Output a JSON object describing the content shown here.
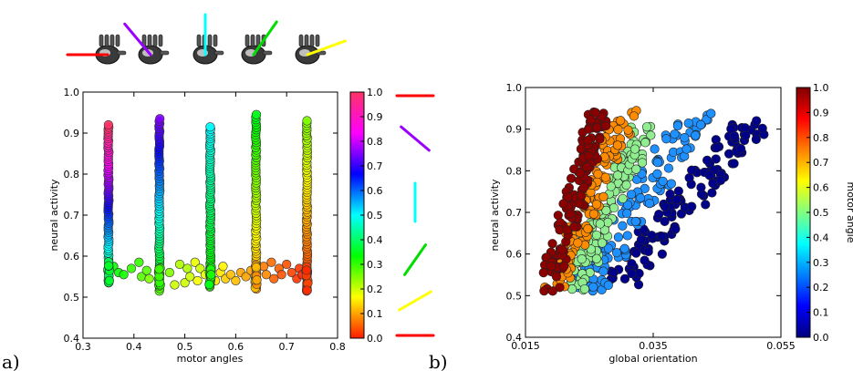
{
  "panels": {
    "a": "a)",
    "b": "b)"
  },
  "chart_data": [
    {
      "type": "scatter",
      "panel": "a)",
      "xlabel": "motor angles",
      "ylabel": "neural activity",
      "xlim": [
        0.3,
        0.8
      ],
      "ylim": [
        0.4,
        1.0
      ],
      "xticks": [
        "0.3",
        "0.4",
        "0.5",
        "0.6",
        "0.7",
        "0.8"
      ],
      "yticks": [
        "0.4",
        "0.5",
        "0.6",
        "0.7",
        "0.8",
        "0.9",
        "1.0"
      ],
      "colorbar": {
        "range": [
          0.0,
          1.0
        ],
        "ticks": [
          "0.0",
          "0.1",
          "0.2",
          "0.3",
          "0.4",
          "0.5",
          "0.6",
          "0.7",
          "0.8",
          "0.9",
          "1.0"
        ],
        "colors": [
          "#ff1a00",
          "#ffff00",
          "#00ff00",
          "#00ffff",
          "#0000ff",
          "#ff00ff",
          "#ff3366"
        ]
      },
      "columns": [
        {
          "x": 0.35,
          "ymin": 0.535,
          "ymax": 0.92,
          "color_min": 0.35,
          "color_max": 1.0
        },
        {
          "x": 0.45,
          "ymin": 0.515,
          "ymax": 0.935,
          "color_min": 0.28,
          "color_max": 0.75
        },
        {
          "x": 0.55,
          "ymin": 0.525,
          "ymax": 0.915,
          "color_min": 0.3,
          "color_max": 0.5
        },
        {
          "x": 0.64,
          "ymin": 0.52,
          "ymax": 0.945,
          "color_min": 0.08,
          "color_max": 0.35
        },
        {
          "x": 0.74,
          "ymin": 0.515,
          "ymax": 0.93,
          "color_min": 0.0,
          "color_max": 0.25
        }
      ],
      "baseline_points": [
        {
          "x": 0.36,
          "y": 0.575,
          "c": 0.33
        },
        {
          "x": 0.37,
          "y": 0.56,
          "c": 0.33
        },
        {
          "x": 0.38,
          "y": 0.555,
          "c": 0.32
        },
        {
          "x": 0.395,
          "y": 0.57,
          "c": 0.3
        },
        {
          "x": 0.41,
          "y": 0.585,
          "c": 0.3
        },
        {
          "x": 0.415,
          "y": 0.55,
          "c": 0.28
        },
        {
          "x": 0.425,
          "y": 0.565,
          "c": 0.28
        },
        {
          "x": 0.43,
          "y": 0.545,
          "c": 0.25
        },
        {
          "x": 0.47,
          "y": 0.56,
          "c": 0.25
        },
        {
          "x": 0.48,
          "y": 0.53,
          "c": 0.2
        },
        {
          "x": 0.49,
          "y": 0.58,
          "c": 0.22
        },
        {
          "x": 0.5,
          "y": 0.535,
          "c": 0.2
        },
        {
          "x": 0.505,
          "y": 0.57,
          "c": 0.22
        },
        {
          "x": 0.51,
          "y": 0.55,
          "c": 0.2
        },
        {
          "x": 0.52,
          "y": 0.585,
          "c": 0.18
        },
        {
          "x": 0.525,
          "y": 0.54,
          "c": 0.17
        },
        {
          "x": 0.53,
          "y": 0.57,
          "c": 0.2
        },
        {
          "x": 0.54,
          "y": 0.555,
          "c": 0.18
        },
        {
          "x": 0.56,
          "y": 0.54,
          "c": 0.15
        },
        {
          "x": 0.57,
          "y": 0.56,
          "c": 0.15
        },
        {
          "x": 0.575,
          "y": 0.575,
          "c": 0.16
        },
        {
          "x": 0.58,
          "y": 0.545,
          "c": 0.13
        },
        {
          "x": 0.59,
          "y": 0.555,
          "c": 0.12
        },
        {
          "x": 0.6,
          "y": 0.54,
          "c": 0.12
        },
        {
          "x": 0.61,
          "y": 0.56,
          "c": 0.1
        },
        {
          "x": 0.62,
          "y": 0.55,
          "c": 0.1
        },
        {
          "x": 0.63,
          "y": 0.565,
          "c": 0.1
        },
        {
          "x": 0.655,
          "y": 0.575,
          "c": 0.07
        },
        {
          "x": 0.66,
          "y": 0.555,
          "c": 0.08
        },
        {
          "x": 0.67,
          "y": 0.585,
          "c": 0.06
        },
        {
          "x": 0.675,
          "y": 0.545,
          "c": 0.05
        },
        {
          "x": 0.685,
          "y": 0.57,
          "c": 0.05
        },
        {
          "x": 0.69,
          "y": 0.555,
          "c": 0.04
        },
        {
          "x": 0.7,
          "y": 0.58,
          "c": 0.04
        },
        {
          "x": 0.71,
          "y": 0.56,
          "c": 0.03
        },
        {
          "x": 0.72,
          "y": 0.545,
          "c": 0.02
        },
        {
          "x": 0.725,
          "y": 0.57,
          "c": 0.02
        },
        {
          "x": 0.73,
          "y": 0.555,
          "c": 0.01
        }
      ],
      "angle_icons": [
        {
          "angle_deg": 0,
          "color": "#ff0000"
        },
        {
          "angle_deg": 30,
          "color": "#ffff00"
        },
        {
          "angle_deg": 55,
          "color": "#00dd00"
        },
        {
          "angle_deg": 90,
          "color": "#00ffff"
        },
        {
          "angle_deg": 140,
          "color": "#9900ff"
        },
        {
          "angle_deg": 180,
          "color": "#ff0000"
        }
      ],
      "hand_icons": [
        {
          "line_angle_deg": 180,
          "color": "#ff0000"
        },
        {
          "line_angle_deg": 130,
          "color": "#9900ff"
        },
        {
          "line_angle_deg": 90,
          "color": "#00ffff"
        },
        {
          "line_angle_deg": 55,
          "color": "#00dd00"
        },
        {
          "line_angle_deg": 20,
          "color": "#ffff00"
        }
      ]
    },
    {
      "type": "scatter",
      "panel": "b)",
      "xlabel": "global orientation",
      "ylabel": "neural activity",
      "xlim": [
        0.015,
        0.055
      ],
      "ylim": [
        0.4,
        1.0
      ],
      "xticks": [
        "0.015",
        "0.035",
        "0.055"
      ],
      "yticks": [
        "0.4",
        "0.5",
        "0.6",
        "0.7",
        "0.8",
        "0.9",
        "1.0"
      ],
      "colorbar": {
        "label": "motor angle",
        "range": [
          0.0,
          1.0
        ],
        "ticks": [
          "0.0",
          "0.1",
          "0.2",
          "0.3",
          "0.4",
          "0.5",
          "0.6",
          "0.7",
          "0.8",
          "0.9",
          "1.0"
        ],
        "colors": [
          "#00007f",
          "#0000ff",
          "#0080ff",
          "#00ffff",
          "#80ff80",
          "#ffff00",
          "#ff8000",
          "#ff0000",
          "#7f0000"
        ]
      },
      "bands": [
        {
          "motor_angle": 0.9,
          "color": "#8b0000",
          "x0": 0.0185,
          "y0": 0.52,
          "x1": 0.0265,
          "y1": 0.93,
          "spread": 0.0016
        },
        {
          "motor_angle": 0.7,
          "color": "#ff8c00",
          "x0": 0.0195,
          "y0": 0.52,
          "x1": 0.031,
          "y1": 0.94,
          "spread": 0.0018
        },
        {
          "motor_angle": 0.5,
          "color": "#90ee90",
          "x0": 0.0225,
          "y0": 0.52,
          "x1": 0.0335,
          "y1": 0.9,
          "spread": 0.0018
        },
        {
          "motor_angle": 0.3,
          "color": "#1e90ff",
          "x0": 0.0245,
          "y0": 0.52,
          "x1": 0.0415,
          "y1": 0.93,
          "spread": 0.0028
        },
        {
          "motor_angle": 0.1,
          "color": "#00008b",
          "x0": 0.0295,
          "y0": 0.53,
          "x1": 0.0505,
          "y1": 0.92,
          "spread": 0.003
        }
      ]
    }
  ]
}
